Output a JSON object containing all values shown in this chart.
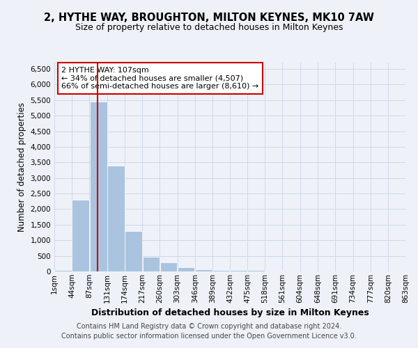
{
  "title": "2, HYTHE WAY, BROUGHTON, MILTON KEYNES, MK10 7AW",
  "subtitle": "Size of property relative to detached houses in Milton Keynes",
  "xlabel": "Distribution of detached houses by size in Milton Keynes",
  "ylabel": "Number of detached properties",
  "footer_line1": "Contains HM Land Registry data © Crown copyright and database right 2024.",
  "footer_line2": "Contains public sector information licensed under the Open Government Licence v3.0.",
  "annotation_line1": "2 HYTHE WAY: 107sqm",
  "annotation_line2": "← 34% of detached houses are smaller (4,507)",
  "annotation_line3": "66% of semi-detached houses are larger (8,610) →",
  "property_size": 107,
  "bin_edges": [
    1,
    44,
    87,
    131,
    174,
    217,
    260,
    303,
    346,
    389,
    432,
    475,
    518,
    561,
    604,
    648,
    691,
    734,
    777,
    820,
    863
  ],
  "bin_labels": [
    "1sqm",
    "44sqm",
    "87sqm",
    "131sqm",
    "174sqm",
    "217sqm",
    "260sqm",
    "303sqm",
    "346sqm",
    "389sqm",
    "432sqm",
    "475sqm",
    "518sqm",
    "561sqm",
    "604sqm",
    "648sqm",
    "691sqm",
    "734sqm",
    "777sqm",
    "820sqm",
    "863sqm"
  ],
  "bar_heights": [
    50,
    2300,
    5450,
    3400,
    1300,
    480,
    300,
    140,
    70,
    50,
    50,
    50,
    20,
    0,
    0,
    0,
    0,
    0,
    0,
    0
  ],
  "bar_color": "#aac4e0",
  "vline_color": "#cc0000",
  "vline_x": 107,
  "ylim": [
    0,
    6700
  ],
  "yticks": [
    0,
    500,
    1000,
    1500,
    2000,
    2500,
    3000,
    3500,
    4000,
    4500,
    5000,
    5500,
    6000,
    6500
  ],
  "grid_color": "#d0d8e8",
  "annotation_box_color": "#cc0000",
  "title_fontsize": 10.5,
  "subtitle_fontsize": 9,
  "axis_label_fontsize": 8.5,
  "tick_fontsize": 7.5,
  "annotation_fontsize": 8,
  "footer_fontsize": 7,
  "bg_color": "#eef2f8"
}
